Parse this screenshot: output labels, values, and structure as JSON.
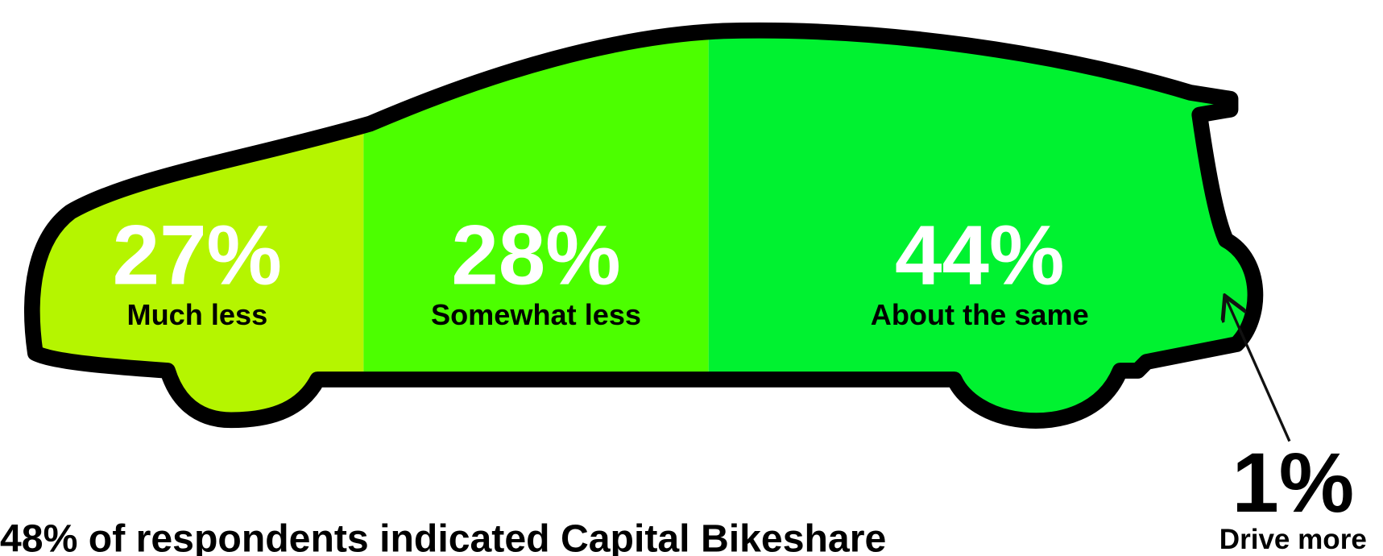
{
  "chart_data": {
    "type": "car",
    "categories": [
      "Much less",
      "Somewhat less",
      "About the same",
      "Drive more"
    ],
    "values": [
      27,
      28,
      44,
      1
    ],
    "value_labels": [
      "27%",
      "28%",
      "44%",
      "1%"
    ],
    "colors": [
      "#b5f500",
      "#4cff00",
      "#00f230",
      "#00a82a"
    ],
    "caption": "48% of respondents indicated Capital Bikeshare"
  }
}
